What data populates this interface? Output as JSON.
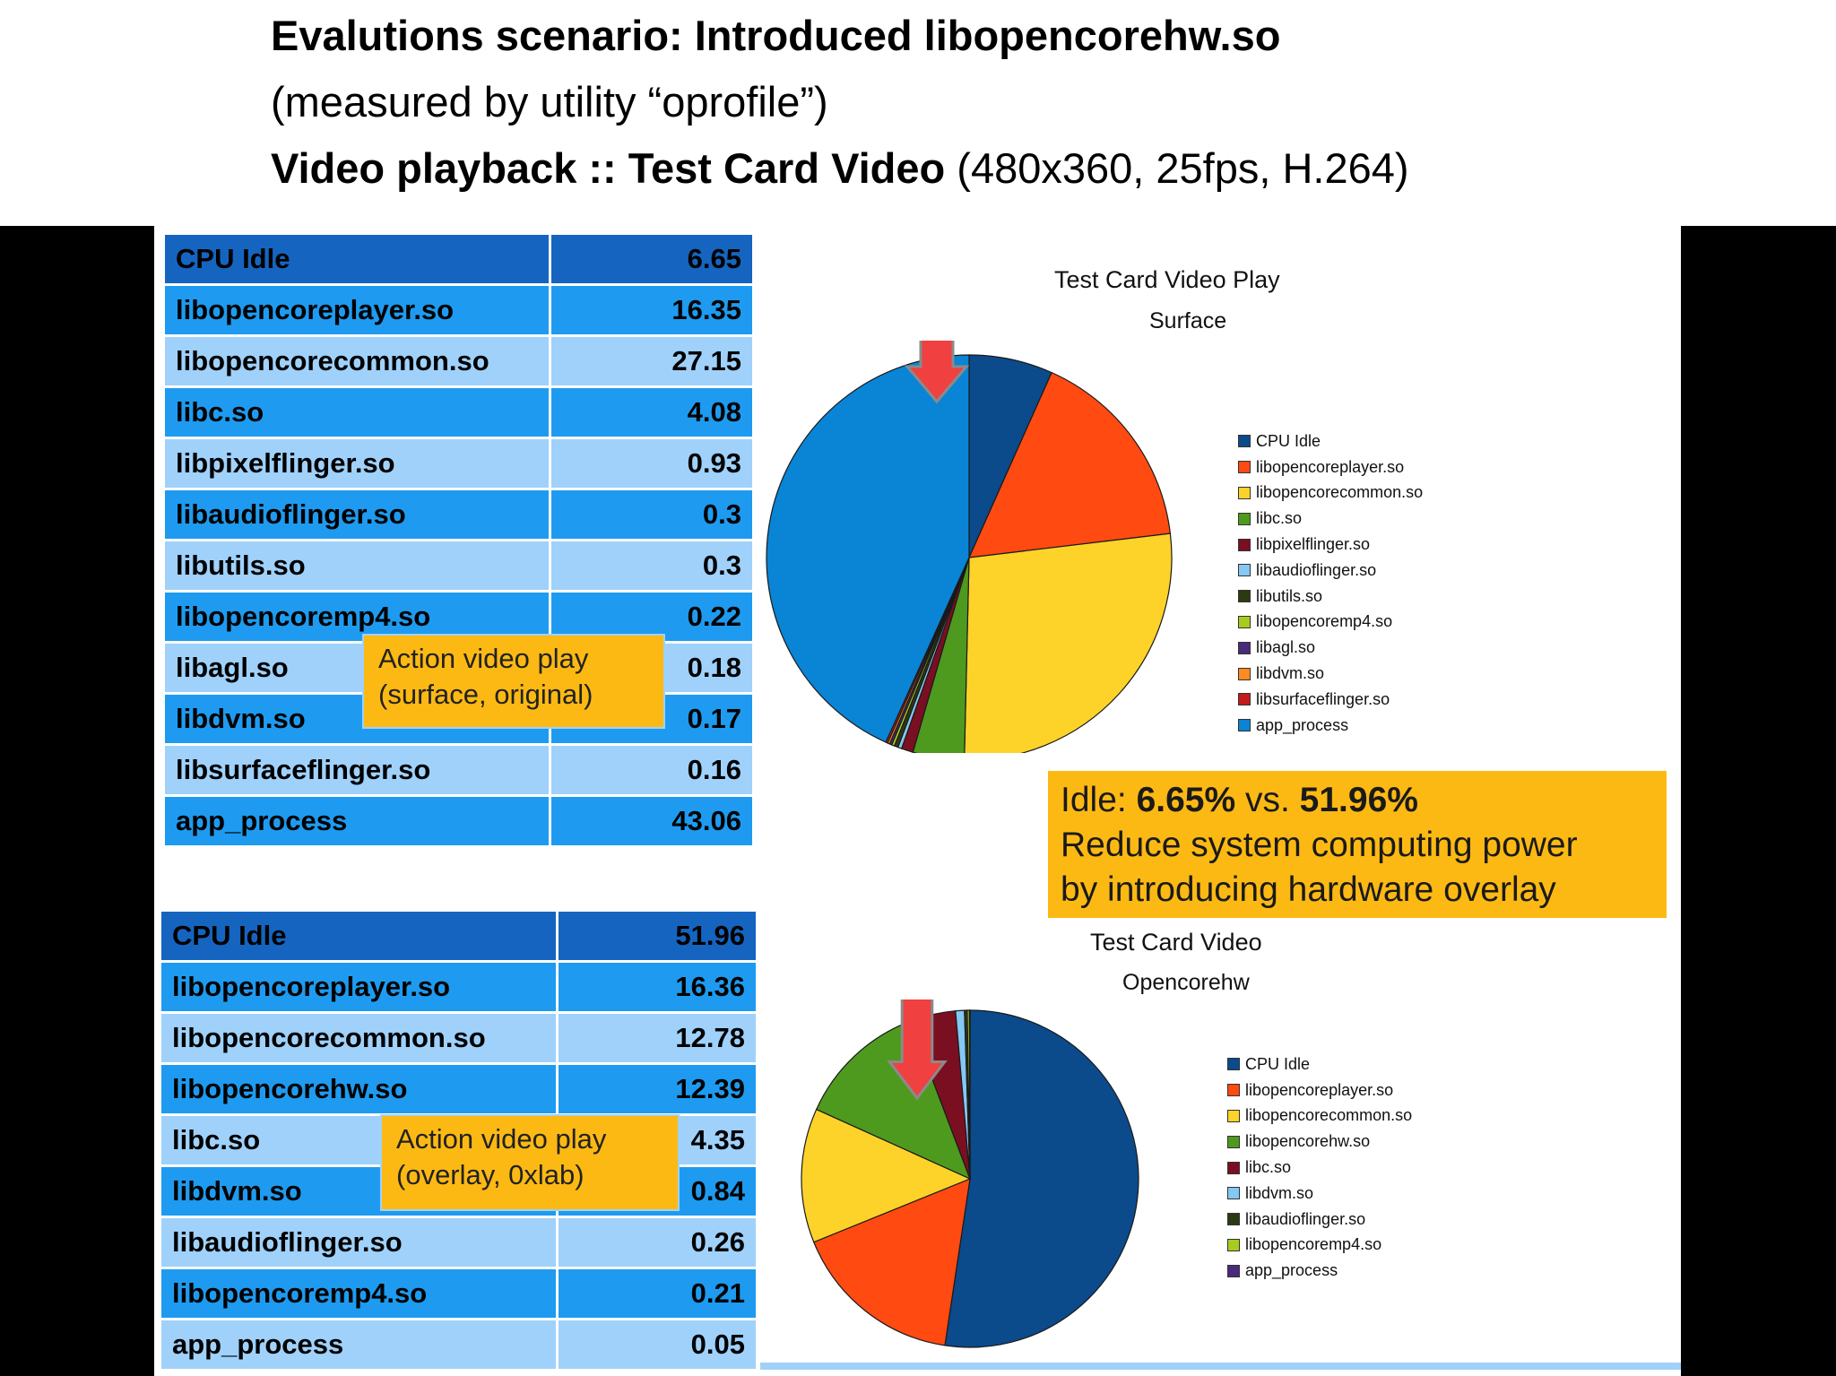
{
  "heading": {
    "line1": "Evalutions scenario: Introduced libopencorehw.so",
    "line2": "(measured by utility “oprofile”)",
    "line3_bold": "Video playback :: Test Card Video",
    "line3_rest": " (480x360, 25fps, H.264)"
  },
  "colors": {
    "table_idle": "#1565c0",
    "table_mid": "#1e9bf0",
    "table_light": "#9fd1fb",
    "callout": "#fdb913",
    "arrow": "#f04040"
  },
  "table1": {
    "rows": [
      {
        "name": "CPU Idle",
        "value": "6.65",
        "shade": "idle"
      },
      {
        "name": "libopencoreplayer.so",
        "value": "16.35",
        "shade": "mid"
      },
      {
        "name": "libopencorecommon.so",
        "value": "27.15",
        "shade": "light"
      },
      {
        "name": "libc.so",
        "value": "4.08",
        "shade": "mid"
      },
      {
        "name": "libpixelflinger.so",
        "value": "0.93",
        "shade": "light"
      },
      {
        "name": "libaudioflinger.so",
        "value": "0.3",
        "shade": "mid"
      },
      {
        "name": "libutils.so",
        "value": "0.3",
        "shade": "light"
      },
      {
        "name": "libopencoremp4.so",
        "value": "0.22",
        "shade": "mid"
      },
      {
        "name": "libagl.so",
        "value": "0.18",
        "shade": "light"
      },
      {
        "name": "libdvm.so",
        "value": "0.17",
        "shade": "mid"
      },
      {
        "name": "libsurfaceflinger.so",
        "value": "0.16",
        "shade": "light"
      },
      {
        "name": "app_process",
        "value": "43.06",
        "shade": "mid"
      }
    ]
  },
  "table2": {
    "rows": [
      {
        "name": "CPU Idle",
        "value": "51.96",
        "shade": "idle"
      },
      {
        "name": "libopencoreplayer.so",
        "value": "16.36",
        "shade": "mid"
      },
      {
        "name": "libopencorecommon.so",
        "value": "12.78",
        "shade": "light"
      },
      {
        "name": "libopencorehw.so",
        "value": "12.39",
        "shade": "mid"
      },
      {
        "name": "libc.so",
        "value": "4.35",
        "shade": "light"
      },
      {
        "name": "libdvm.so",
        "value": "0.84",
        "shade": "mid"
      },
      {
        "name": "libaudioflinger.so",
        "value": "0.26",
        "shade": "light"
      },
      {
        "name": "libopencoremp4.so",
        "value": "0.21",
        "shade": "mid"
      },
      {
        "name": "app_process",
        "value": "0.05",
        "shade": "light"
      }
    ]
  },
  "callout1": {
    "line1": "Action video play",
    "line2": "(surface, original)"
  },
  "callout2": {
    "line1": "Action video play",
    "line2": "(overlay, 0xlab)"
  },
  "note": {
    "idle_label": "Idle: ",
    "idle_a": "6.65%",
    "vs": " vs. ",
    "idle_b": "51.96%",
    "line2": "Reduce system computing power",
    "line3": "by introducing hardware overlay"
  },
  "chart_data": [
    {
      "type": "pie",
      "title": "Test Card Video Play",
      "subtitle": "Surface",
      "legend_position": "right",
      "slices": [
        {
          "label": "CPU Idle",
          "value": 6.65,
          "color": "#0b4a8b"
        },
        {
          "label": "libopencoreplayer.so",
          "value": 16.35,
          "color": "#ff4a12"
        },
        {
          "label": "libopencorecommon.so",
          "value": 27.15,
          "color": "#fdd32a"
        },
        {
          "label": "libc.so",
          "value": 4.08,
          "color": "#4e9a1e"
        },
        {
          "label": "libpixelflinger.so",
          "value": 0.93,
          "color": "#7a0f22"
        },
        {
          "label": "libaudioflinger.so",
          "value": 0.3,
          "color": "#84c8f4"
        },
        {
          "label": "libutils.so",
          "value": 0.3,
          "color": "#2c3a14"
        },
        {
          "label": "libopencoremp4.so",
          "value": 0.22,
          "color": "#a8cc1e"
        },
        {
          "label": "libagl.so",
          "value": 0.18,
          "color": "#4a2a7a"
        },
        {
          "label": "libdvm.so",
          "value": 0.17,
          "color": "#ff8a20"
        },
        {
          "label": "libsurfaceflinger.so",
          "value": 0.16,
          "color": "#c41a1a"
        },
        {
          "label": "app_process",
          "value": 43.06,
          "color": "#0a84d4"
        }
      ]
    },
    {
      "type": "pie",
      "title": "Test Card Video",
      "subtitle": "Opencorehw",
      "legend_position": "right",
      "slices": [
        {
          "label": "CPU Idle",
          "value": 51.96,
          "color": "#0b4a8b"
        },
        {
          "label": "libopencoreplayer.so",
          "value": 16.36,
          "color": "#ff4a12"
        },
        {
          "label": "libopencorecommon.so",
          "value": 12.78,
          "color": "#fdd32a"
        },
        {
          "label": "libopencorehw.so",
          "value": 12.39,
          "color": "#4e9a1e"
        },
        {
          "label": "libc.so",
          "value": 4.35,
          "color": "#7a0f22"
        },
        {
          "label": "libdvm.so",
          "value": 0.84,
          "color": "#84c8f4"
        },
        {
          "label": "libaudioflinger.so",
          "value": 0.26,
          "color": "#2c3a14"
        },
        {
          "label": "libopencoremp4.so",
          "value": 0.21,
          "color": "#a8cc1e"
        },
        {
          "label": "app_process",
          "value": 0.05,
          "color": "#4a2a7a"
        }
      ]
    }
  ]
}
